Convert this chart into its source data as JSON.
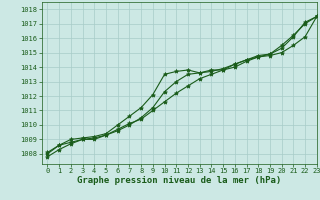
{
  "xlabel": "Graphe pression niveau de la mer (hPa)",
  "xlim": [
    -0.5,
    23
  ],
  "ylim": [
    1007.3,
    1018.5
  ],
  "yticks": [
    1008,
    1009,
    1010,
    1011,
    1012,
    1013,
    1014,
    1015,
    1016,
    1017,
    1018
  ],
  "xticks": [
    0,
    1,
    2,
    3,
    4,
    5,
    6,
    7,
    8,
    9,
    10,
    11,
    12,
    13,
    14,
    15,
    16,
    17,
    18,
    19,
    20,
    21,
    22,
    23
  ],
  "bg_color": "#cce8e4",
  "grid_color": "#a8ccc8",
  "line_color": "#1a5c1a",
  "line1_x": [
    0,
    1,
    2,
    3,
    4,
    5,
    6,
    7,
    8,
    9,
    10,
    11,
    12,
    13,
    14,
    15,
    16,
    17,
    18,
    19,
    20,
    21,
    22,
    23
  ],
  "line1_y": [
    1008.1,
    1008.6,
    1009.0,
    1009.1,
    1009.2,
    1009.4,
    1010.0,
    1010.6,
    1011.2,
    1012.1,
    1013.5,
    1013.7,
    1013.8,
    1013.6,
    1013.8,
    1013.8,
    1014.2,
    1014.5,
    1014.7,
    1014.9,
    1015.3,
    1016.1,
    1017.1,
    1017.5
  ],
  "line2_x": [
    0,
    1,
    2,
    3,
    4,
    5,
    6,
    7,
    8,
    9,
    10,
    11,
    12,
    13,
    14,
    15,
    16,
    17,
    18,
    19,
    20,
    21,
    22,
    23
  ],
  "line2_y": [
    1008.0,
    1008.6,
    1008.8,
    1009.0,
    1009.1,
    1009.3,
    1009.7,
    1010.1,
    1010.4,
    1011.0,
    1011.6,
    1012.2,
    1012.7,
    1013.2,
    1013.5,
    1013.8,
    1014.0,
    1014.4,
    1014.7,
    1014.8,
    1015.0,
    1015.5,
    1016.1,
    1017.5
  ],
  "line3_x": [
    0,
    1,
    2,
    3,
    4,
    5,
    6,
    7,
    8,
    9,
    10,
    11,
    12,
    13,
    14,
    15,
    16,
    17,
    18,
    19,
    20,
    21,
    22,
    23
  ],
  "line3_y": [
    1007.8,
    1008.3,
    1008.7,
    1009.0,
    1009.0,
    1009.3,
    1009.6,
    1010.0,
    1010.5,
    1011.2,
    1012.3,
    1013.0,
    1013.5,
    1013.6,
    1013.7,
    1013.9,
    1014.2,
    1014.5,
    1014.8,
    1014.9,
    1015.5,
    1016.2,
    1017.0,
    1017.5
  ],
  "marker": "*",
  "markersize": 3,
  "linewidth": 0.8,
  "label_fontsize": 6.5,
  "tick_fontsize": 5.0
}
